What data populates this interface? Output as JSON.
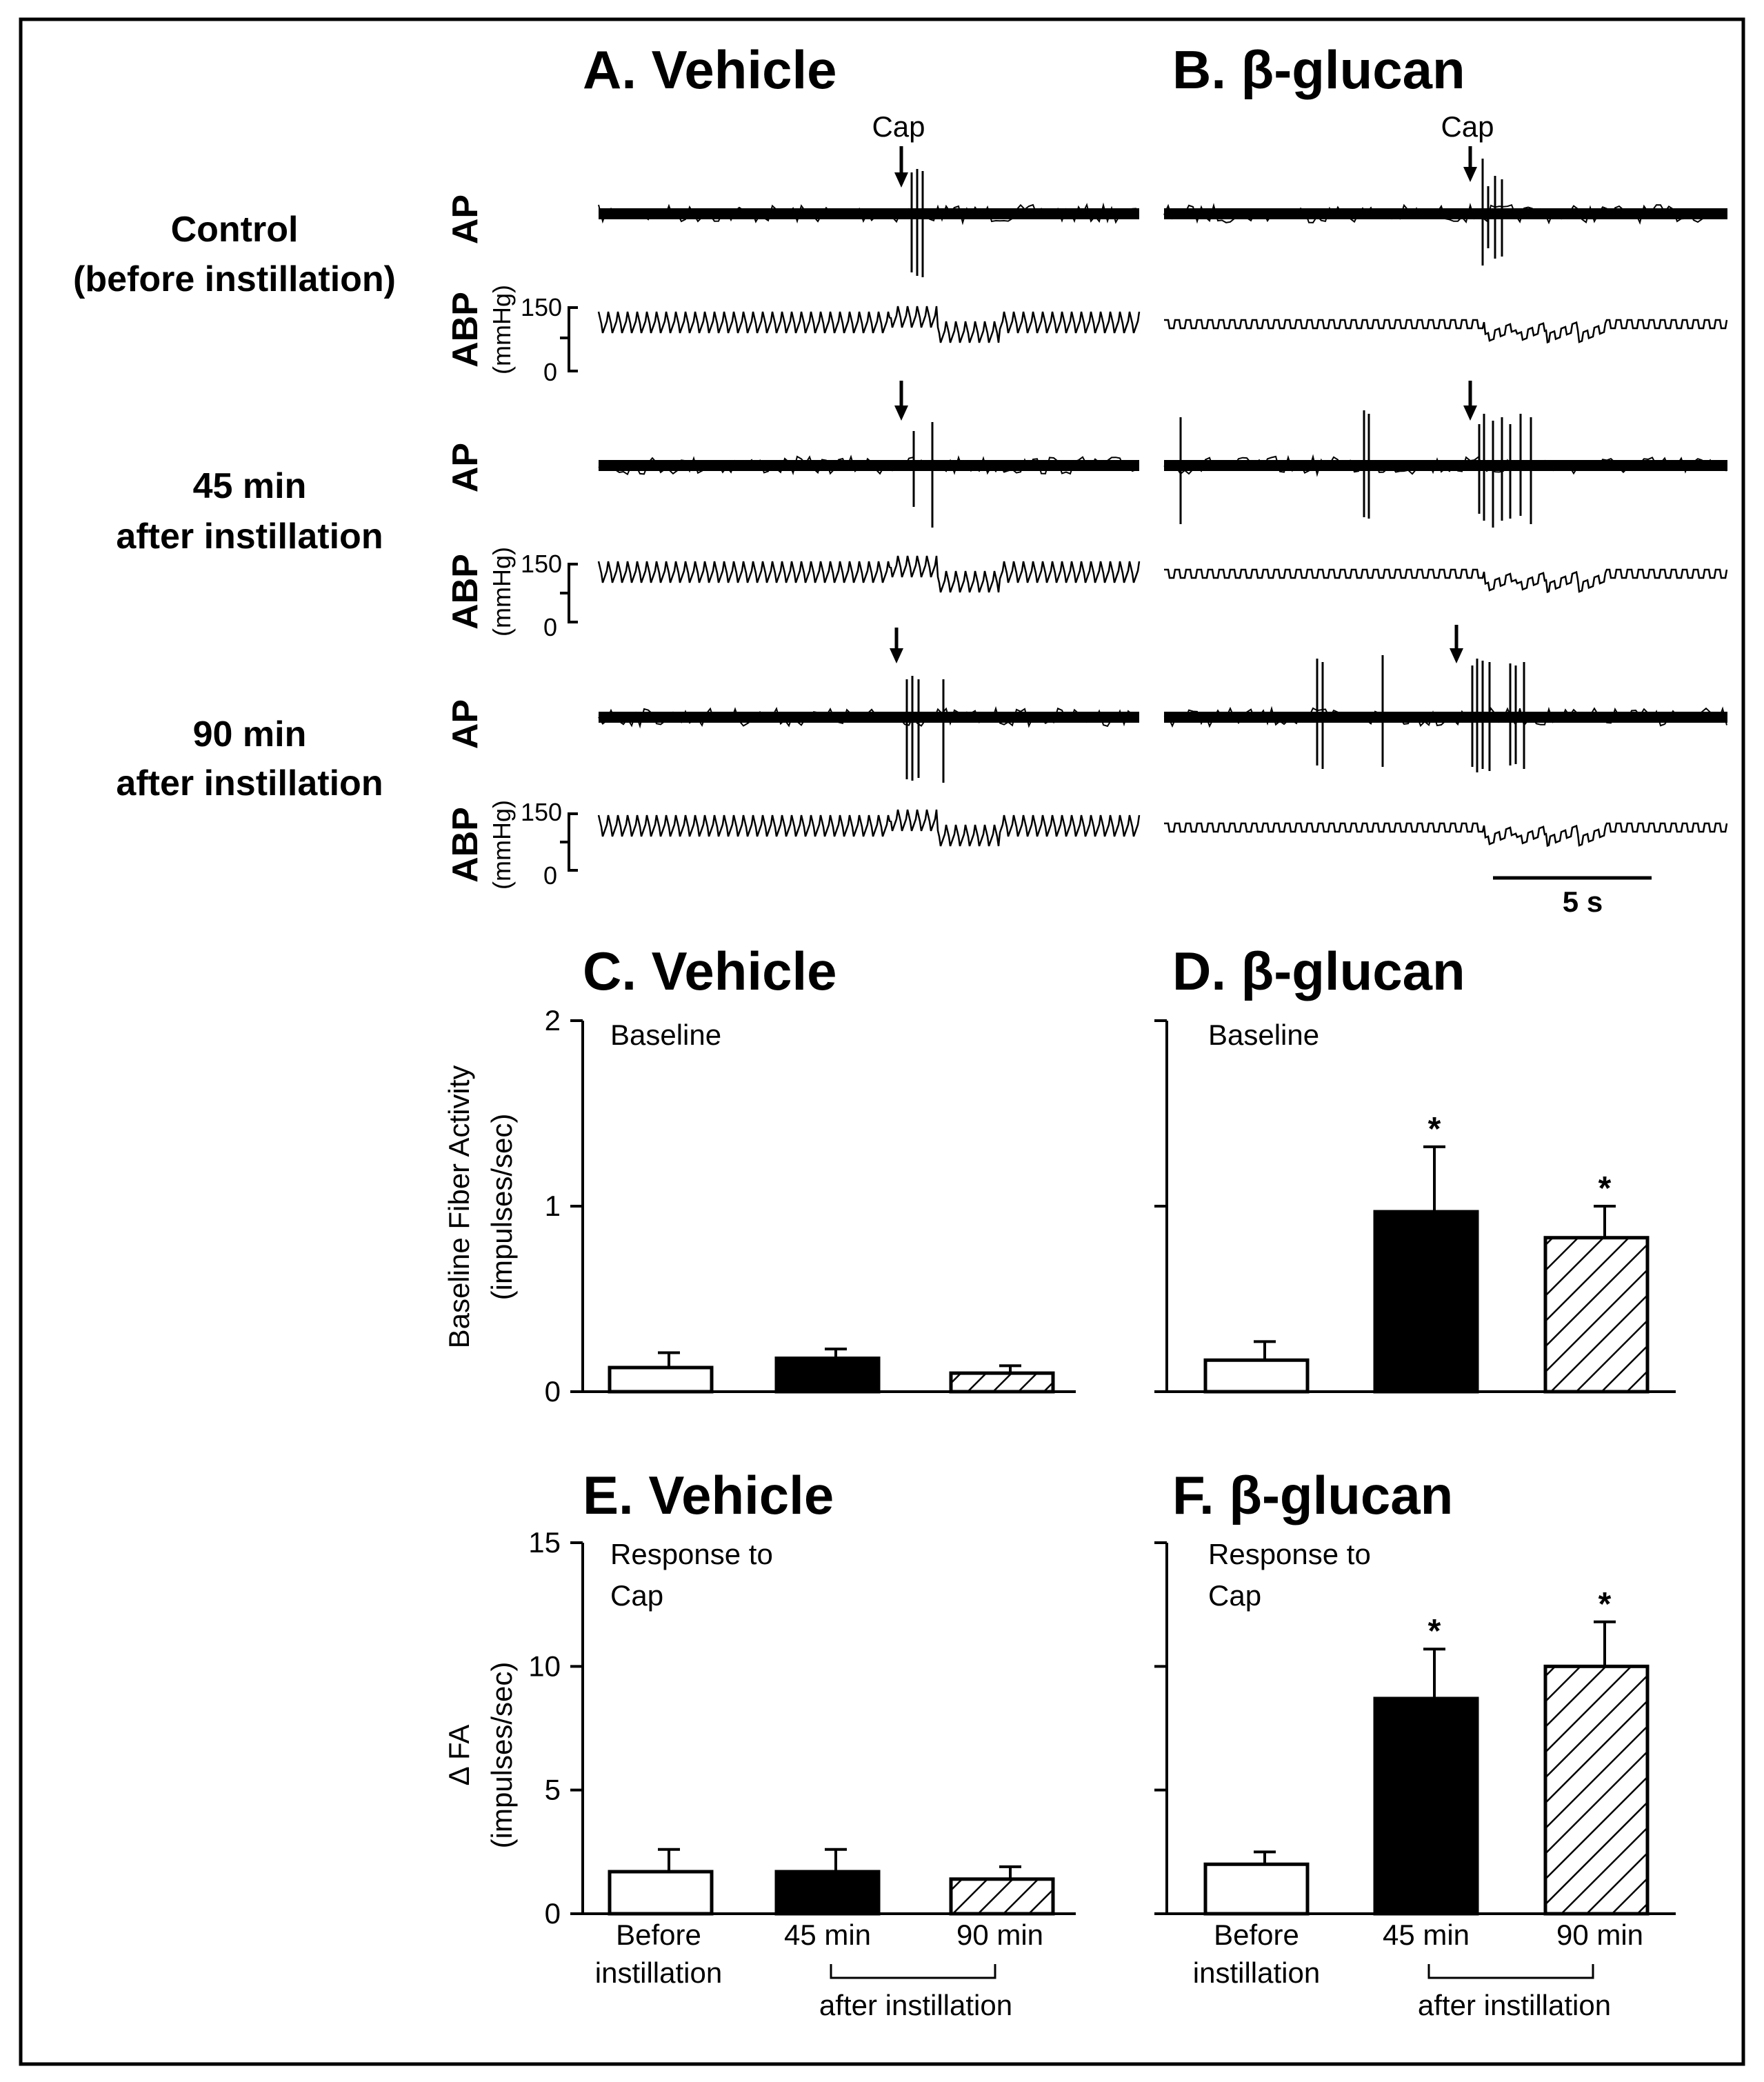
{
  "panel_titles": {
    "A": "A. Vehicle",
    "B": "B. β-glucan",
    "C": "C. Vehicle",
    "D": "D. β-glucan",
    "E": "E. Vehicle",
    "F": "F. β-glucan"
  },
  "traces": {
    "stimulus_label": "Cap",
    "ap_label": "AP",
    "abp_label": "ABP",
    "abp_unit": "(mmHg)",
    "abp_tick_top": "150",
    "abp_tick_bottom": "0",
    "scale_bar_label": "5 s",
    "rows": [
      {
        "label_line1": "Control",
        "label_line2": "(before instillation)"
      },
      {
        "label_line1": "45 min",
        "label_line2": "after instillation"
      },
      {
        "label_line1": "90 min",
        "label_line2": "after instillation"
      }
    ]
  },
  "chart_data": [
    {
      "id": "C",
      "type": "bar",
      "title": "C. Vehicle",
      "annotation": "Baseline",
      "ylabel": "Baseline Fiber Activity",
      "ylabel_unit": "(impulses/sec)",
      "ylim": [
        0,
        2
      ],
      "yticks": [
        "0",
        "1",
        "2"
      ],
      "categories": [
        "Before instillation",
        "45 min",
        "90 min"
      ],
      "values": [
        0.13,
        0.18,
        0.1
      ],
      "errors": [
        0.08,
        0.05,
        0.04
      ],
      "significant": [
        false,
        false,
        false
      ]
    },
    {
      "id": "D",
      "type": "bar",
      "title": "D. β-glucan",
      "annotation": "Baseline",
      "ylim": [
        0,
        2
      ],
      "categories": [
        "Before instillation",
        "45 min",
        "90 min"
      ],
      "values": [
        0.17,
        0.97,
        0.83
      ],
      "errors": [
        0.1,
        0.35,
        0.17
      ],
      "significant": [
        false,
        true,
        true
      ]
    },
    {
      "id": "E",
      "type": "bar",
      "title": "E. Vehicle",
      "annotation_line1": "Response to",
      "annotation_line2": "Cap",
      "ylabel": "Δ FA",
      "ylabel_unit": "(impulses/sec)",
      "ylim": [
        0,
        15
      ],
      "yticks": [
        "0",
        "5",
        "10",
        "15"
      ],
      "categories": [
        "Before instillation",
        "45 min",
        "90 min"
      ],
      "values": [
        1.7,
        1.7,
        1.4
      ],
      "errors": [
        0.9,
        0.9,
        0.5
      ],
      "significant": [
        false,
        false,
        false
      ]
    },
    {
      "id": "F",
      "type": "bar",
      "title": "F. β-glucan",
      "annotation_line1": "Response to",
      "annotation_line2": "Cap",
      "ylim": [
        0,
        15
      ],
      "categories": [
        "Before instillation",
        "45 min",
        "90 min"
      ],
      "values": [
        2.0,
        8.7,
        10.0
      ],
      "errors": [
        0.5,
        2.0,
        1.8
      ],
      "significant": [
        false,
        true,
        true
      ]
    }
  ],
  "x_axis": {
    "before_line1": "Before",
    "before_line2": "instillation",
    "t45": "45 min",
    "t90": "90 min",
    "after": "after instillation"
  },
  "significance_marker": "*"
}
